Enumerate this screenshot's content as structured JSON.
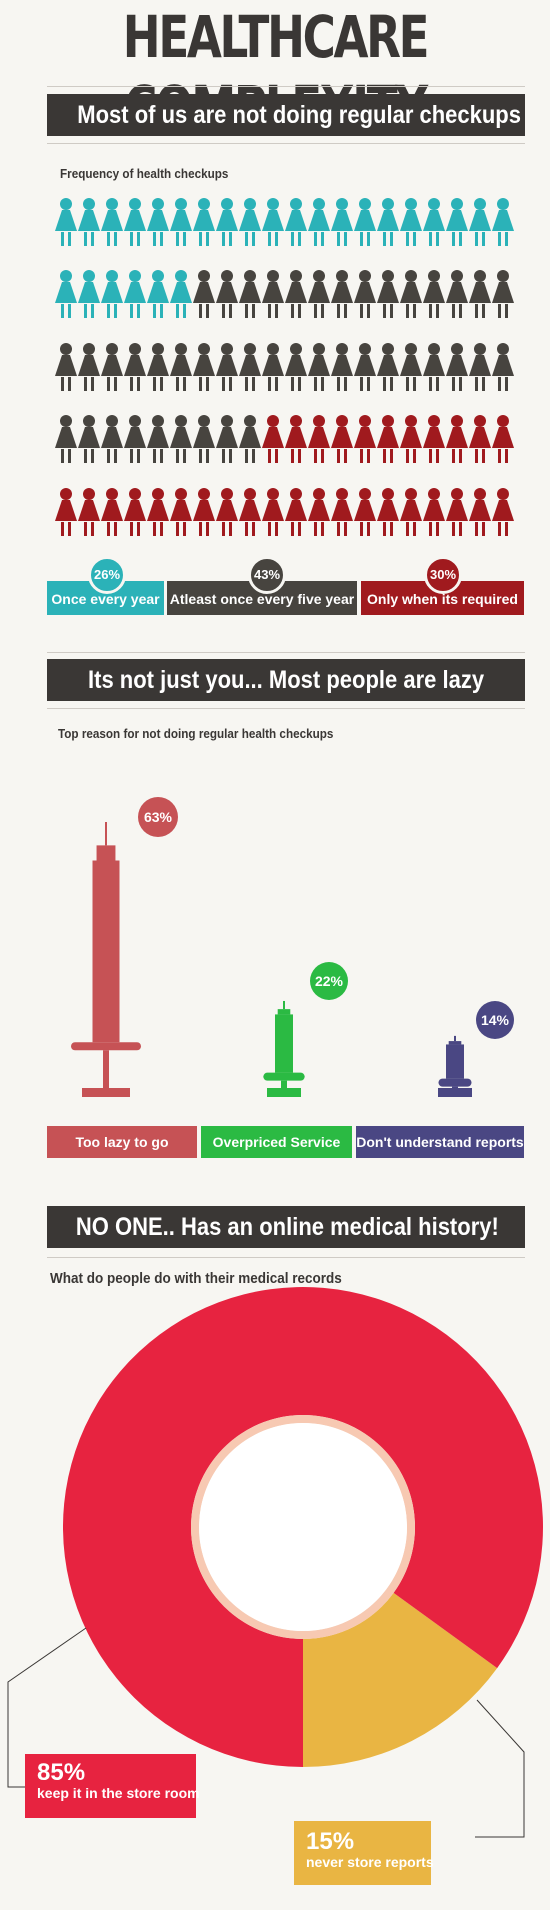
{
  "page": {
    "title": "HEALTHCARE COMPLEXITY"
  },
  "colors": {
    "teal": "#2bb2b8",
    "dark": "#47443f",
    "red": "#a01a1e",
    "banner": "#3a3735",
    "syringe_red": "#c65255",
    "syringe_green": "#2bba43",
    "syringe_blue": "#4a4783",
    "pie_red": "#e72340",
    "pie_yellow": "#e9b543"
  },
  "section1": {
    "banner": "Most of us are not doing regular checkups",
    "subtitle": "Frequency of health checkups",
    "icon": "person-icon",
    "legend": [
      {
        "percent": "26%",
        "label": "Once every year",
        "color": "#2bb2b8"
      },
      {
        "percent": "43%",
        "label": "Atleast once every five year",
        "color": "#47443f"
      },
      {
        "percent": "30%",
        "label": "Only when its required",
        "color": "#a01a1e"
      }
    ]
  },
  "section2": {
    "banner": "Its not just you... Most people are lazy",
    "subtitle": "Top reason for not doing regular health checkups",
    "icon": "syringe-icon"
  },
  "section3": {
    "banner": "NO ONE.. Has an online medical history!",
    "subtitle": "What do people do with their medical records",
    "labels": [
      {
        "percent": "85%",
        "text": "keep it in the store room"
      },
      {
        "percent": "15%",
        "text": "never store reports"
      }
    ]
  },
  "chart_data": [
    {
      "type": "pictogram",
      "title": "Frequency of health checkups",
      "unit": "people",
      "rows": 5,
      "per_row": 20,
      "categories": [
        "Once every year",
        "Atleast once every five year",
        "Only when its required"
      ],
      "values": [
        26,
        43,
        30
      ],
      "labels": [
        "26%",
        "43%",
        "30%"
      ],
      "icon_counts": [
        26,
        43,
        31
      ],
      "colors": [
        "#2bb2b8",
        "#47443f",
        "#a01a1e"
      ]
    },
    {
      "type": "bar",
      "title": "Top reason for not doing regular health checkups",
      "categories": [
        "Too lazy to go",
        "Overpriced Service",
        "Don't understand reports"
      ],
      "values": [
        63,
        22,
        14
      ],
      "labels": [
        "63%",
        "22%",
        "14%"
      ],
      "colors": [
        "#c65255",
        "#2bba43",
        "#4a4783"
      ]
    },
    {
      "type": "pie",
      "title": "What do people do with their medical records",
      "categories": [
        "keep it in the store room",
        "never store reports"
      ],
      "values": [
        85,
        15
      ],
      "labels": [
        "85%",
        "15%"
      ],
      "colors": [
        "#e72340",
        "#e9b543"
      ]
    }
  ]
}
